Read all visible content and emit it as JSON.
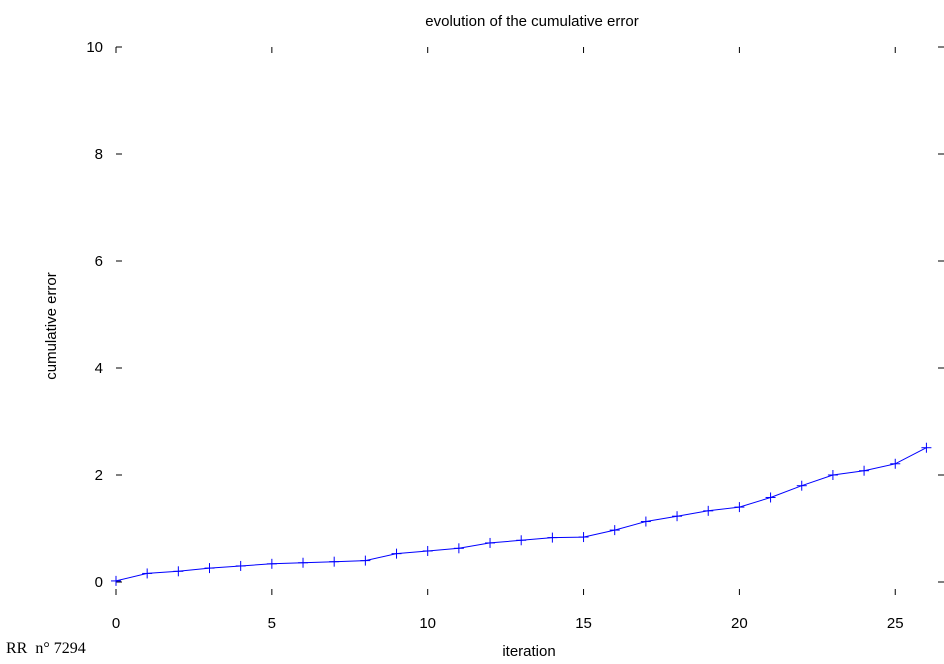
{
  "chart_data": {
    "type": "line",
    "title": "evolution of the cumulative error",
    "xlabel": "iteration",
    "ylabel": "cumulative error",
    "xlim": [
      0,
      26.5
    ],
    "ylim": [
      0,
      10
    ],
    "xticks": [
      0,
      5,
      10,
      15,
      20,
      25
    ],
    "yticks": [
      0,
      2,
      4,
      6,
      8,
      10
    ],
    "grid": false,
    "series_color": "#0000ff",
    "marker": "plus",
    "x": [
      0,
      1,
      2,
      3,
      4,
      5,
      6,
      7,
      8,
      9,
      10,
      11,
      12,
      13,
      14,
      15,
      16,
      17,
      18,
      19,
      20,
      21,
      22,
      23,
      24,
      25,
      26
    ],
    "y": [
      0.02,
      0.16,
      0.2,
      0.26,
      0.3,
      0.34,
      0.36,
      0.38,
      0.4,
      0.53,
      0.58,
      0.63,
      0.73,
      0.78,
      0.83,
      0.84,
      0.97,
      1.13,
      1.23,
      1.33,
      1.4,
      1.58,
      1.8,
      2.0,
      2.08,
      2.21,
      2.51
    ]
  },
  "footer": {
    "report_number": "RR  n° 7294"
  }
}
